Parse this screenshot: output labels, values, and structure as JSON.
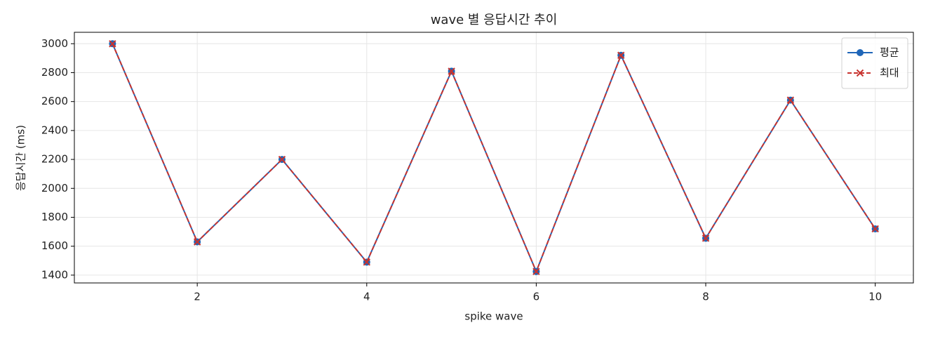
{
  "chart_data": {
    "type": "line",
    "title": "wave 별 응답시간 추이",
    "xlabel": "spike wave",
    "ylabel": "응답시간 (ms)",
    "x": [
      1,
      2,
      3,
      4,
      5,
      6,
      7,
      8,
      9,
      10
    ],
    "series": [
      {
        "name": "평균",
        "color": "#1f66b8",
        "marker": "o",
        "linestyle": "solid",
        "values": [
          3000,
          1630,
          2200,
          1490,
          2810,
          1425,
          2920,
          1655,
          2610,
          1720
        ]
      },
      {
        "name": "최대",
        "color": "#c8332f",
        "marker": "x",
        "linestyle": "dashed",
        "values": [
          3000,
          1630,
          2200,
          1490,
          2810,
          1425,
          2920,
          1655,
          2610,
          1720
        ]
      }
    ],
    "xlim": [
      0.55,
      10.45
    ],
    "xticks": [
      2,
      4,
      6,
      8,
      10
    ],
    "ylim": [
      1346,
      3079
    ],
    "yticks": [
      1400,
      1600,
      1800,
      2000,
      2200,
      2400,
      2600,
      2800,
      3000
    ],
    "grid": true,
    "legend": "upper right"
  }
}
